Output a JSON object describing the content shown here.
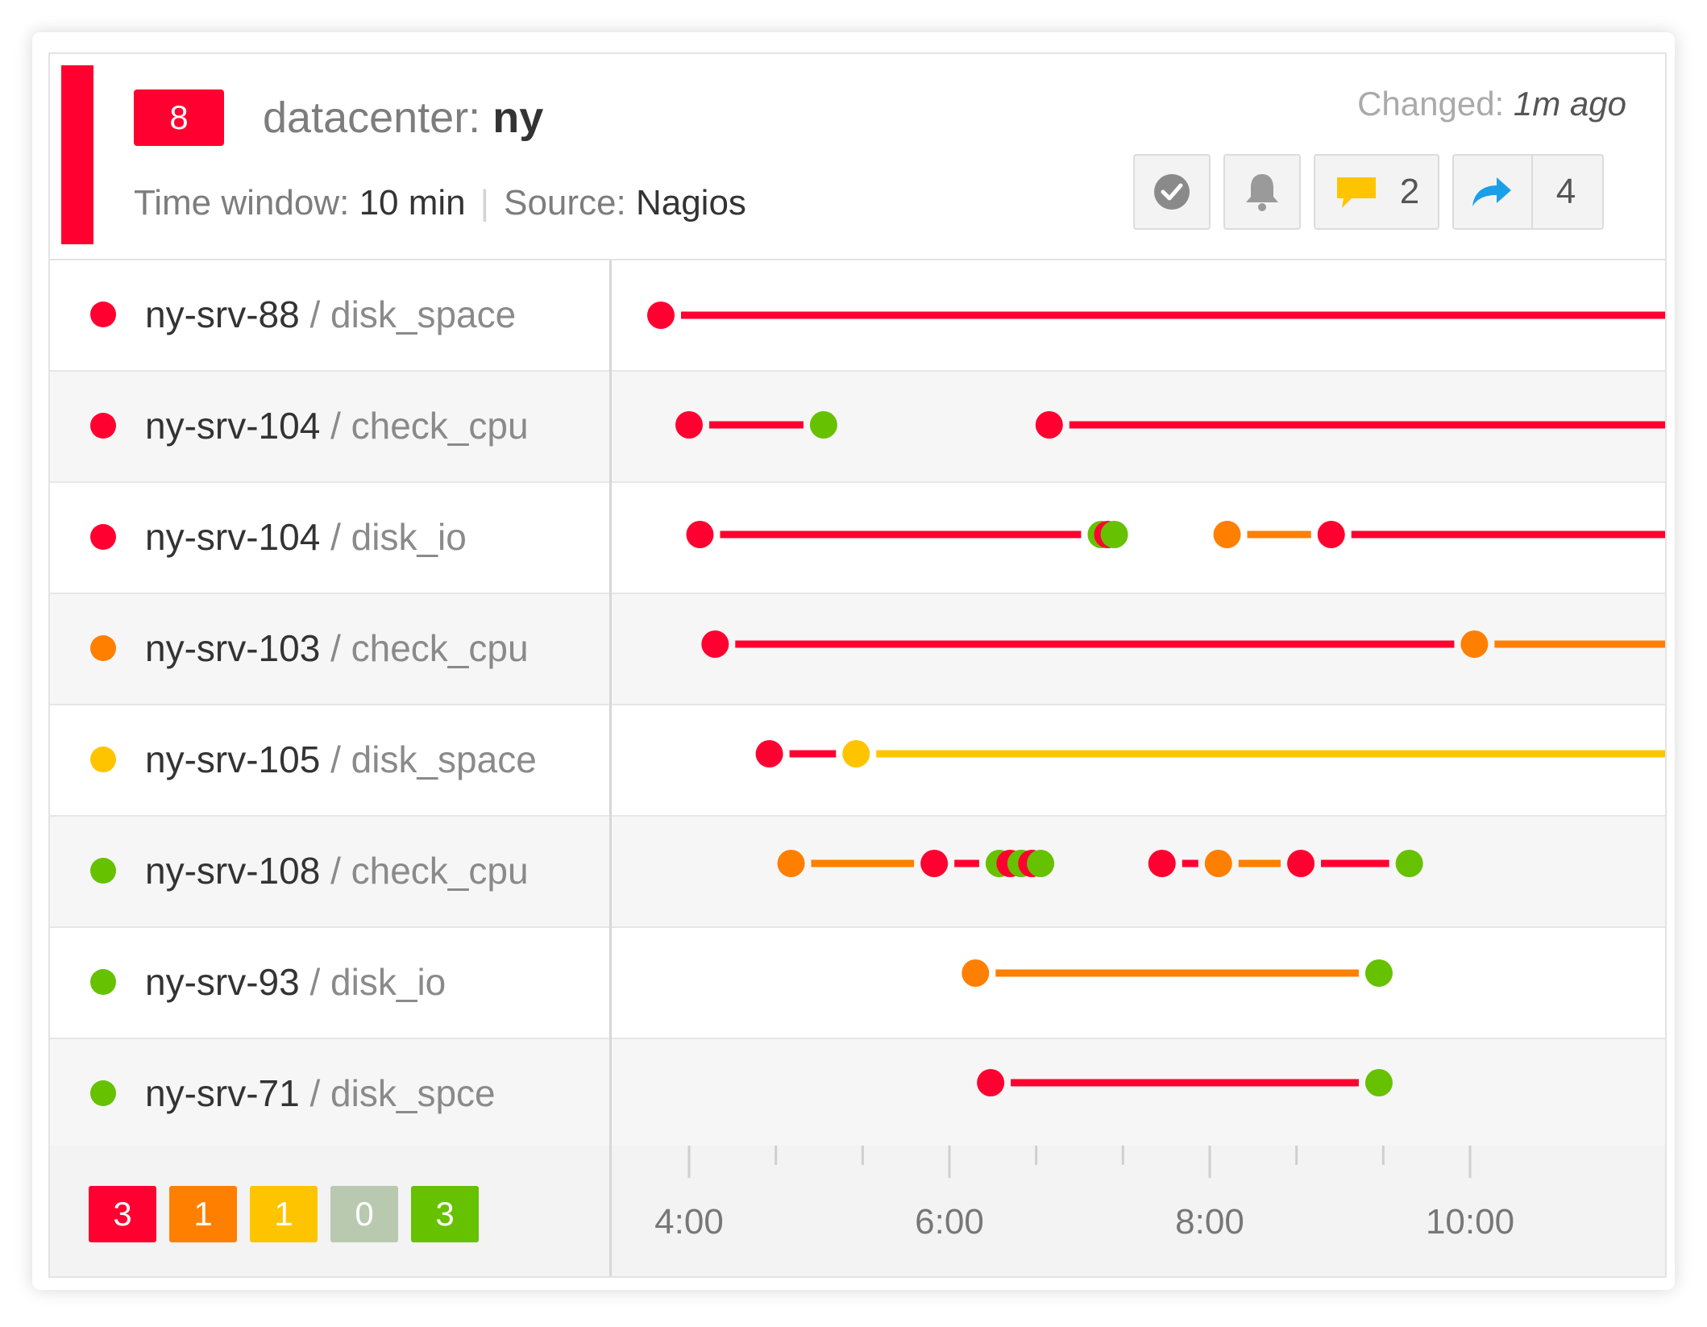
{
  "header": {
    "alert_count": "8",
    "title_key": "datacenter:",
    "title_value": "ny",
    "time_window_label": "Time window:",
    "time_window_value": "10 min",
    "source_label": "Source:",
    "source_value": "Nagios",
    "changed_label": "Changed:",
    "changed_value": "1m ago",
    "comments_count": "2",
    "share_count": "4"
  },
  "colors": {
    "critical": "#ff0030",
    "major": "#ff7f00",
    "minor": "#ffc400",
    "unknown": "#b8c9b0",
    "ok": "#66c100",
    "comment": "#ffc400",
    "share": "#1aa0e8"
  },
  "rows": [
    {
      "host": "ny-srv-88",
      "check": " / disk_space",
      "status": "critical"
    },
    {
      "host": "ny-srv-104",
      "check": " / check_cpu",
      "status": "critical"
    },
    {
      "host": "ny-srv-104",
      "check": " / disk_io",
      "status": "critical"
    },
    {
      "host": "ny-srv-103",
      "check": " / check_cpu",
      "status": "major"
    },
    {
      "host": "ny-srv-105",
      "check": " / disk_space",
      "status": "minor"
    },
    {
      "host": "ny-srv-108",
      "check": " / check_cpu",
      "status": "ok"
    },
    {
      "host": "ny-srv-93",
      "check": " / disk_io",
      "status": "ok"
    },
    {
      "host": "ny-srv-71",
      "check": " / disk_spce",
      "status": "ok"
    }
  ],
  "summary": [
    {
      "value": "3",
      "status": "critical"
    },
    {
      "value": "1",
      "status": "major"
    },
    {
      "value": "1",
      "status": "minor"
    },
    {
      "value": "0",
      "status": "unknown"
    },
    {
      "value": "3",
      "status": "ok"
    }
  ],
  "axis": {
    "start_min": 210,
    "end_min": 630,
    "major_ticks": [
      {
        "min": 240,
        "label": "4:00"
      },
      {
        "min": 360,
        "label": "6:00"
      },
      {
        "min": 480,
        "label": "8:00"
      },
      {
        "min": 600,
        "label": "10:00"
      }
    ],
    "minor_ticks": [
      280,
      320,
      400,
      440,
      520,
      560
    ]
  },
  "events": [
    [
      {
        "t": 227,
        "status": "critical"
      }
    ],
    [
      {
        "t": 240,
        "status": "critical"
      },
      {
        "t": 302,
        "status": "ok"
      },
      {
        "t": 406,
        "status": "critical"
      }
    ],
    [
      {
        "t": 245,
        "status": "critical"
      },
      {
        "t": 430,
        "status": "ok"
      },
      {
        "t": 433,
        "status": "critical"
      },
      {
        "t": 436,
        "status": "ok"
      },
      {
        "t": 488,
        "status": "major"
      },
      {
        "t": 536,
        "status": "critical"
      }
    ],
    [
      {
        "t": 252,
        "status": "critical"
      },
      {
        "t": 602,
        "status": "major"
      }
    ],
    [
      {
        "t": 277,
        "status": "critical"
      },
      {
        "t": 317,
        "status": "minor"
      }
    ],
    [
      {
        "t": 287,
        "status": "major"
      },
      {
        "t": 353,
        "status": "critical"
      },
      {
        "t": 383,
        "status": "ok"
      },
      {
        "t": 388,
        "status": "critical"
      },
      {
        "t": 393,
        "status": "ok"
      },
      {
        "t": 398,
        "status": "critical"
      },
      {
        "t": 402,
        "status": "ok"
      },
      {
        "t": 458,
        "status": "critical"
      },
      {
        "t": 484,
        "status": "major"
      },
      {
        "t": 522,
        "status": "critical"
      },
      {
        "t": 572,
        "status": "ok"
      }
    ],
    [
      {
        "t": 372,
        "status": "major"
      },
      {
        "t": 558,
        "status": "ok"
      }
    ],
    [
      {
        "t": 379,
        "status": "critical"
      },
      {
        "t": 558,
        "status": "ok"
      }
    ]
  ]
}
